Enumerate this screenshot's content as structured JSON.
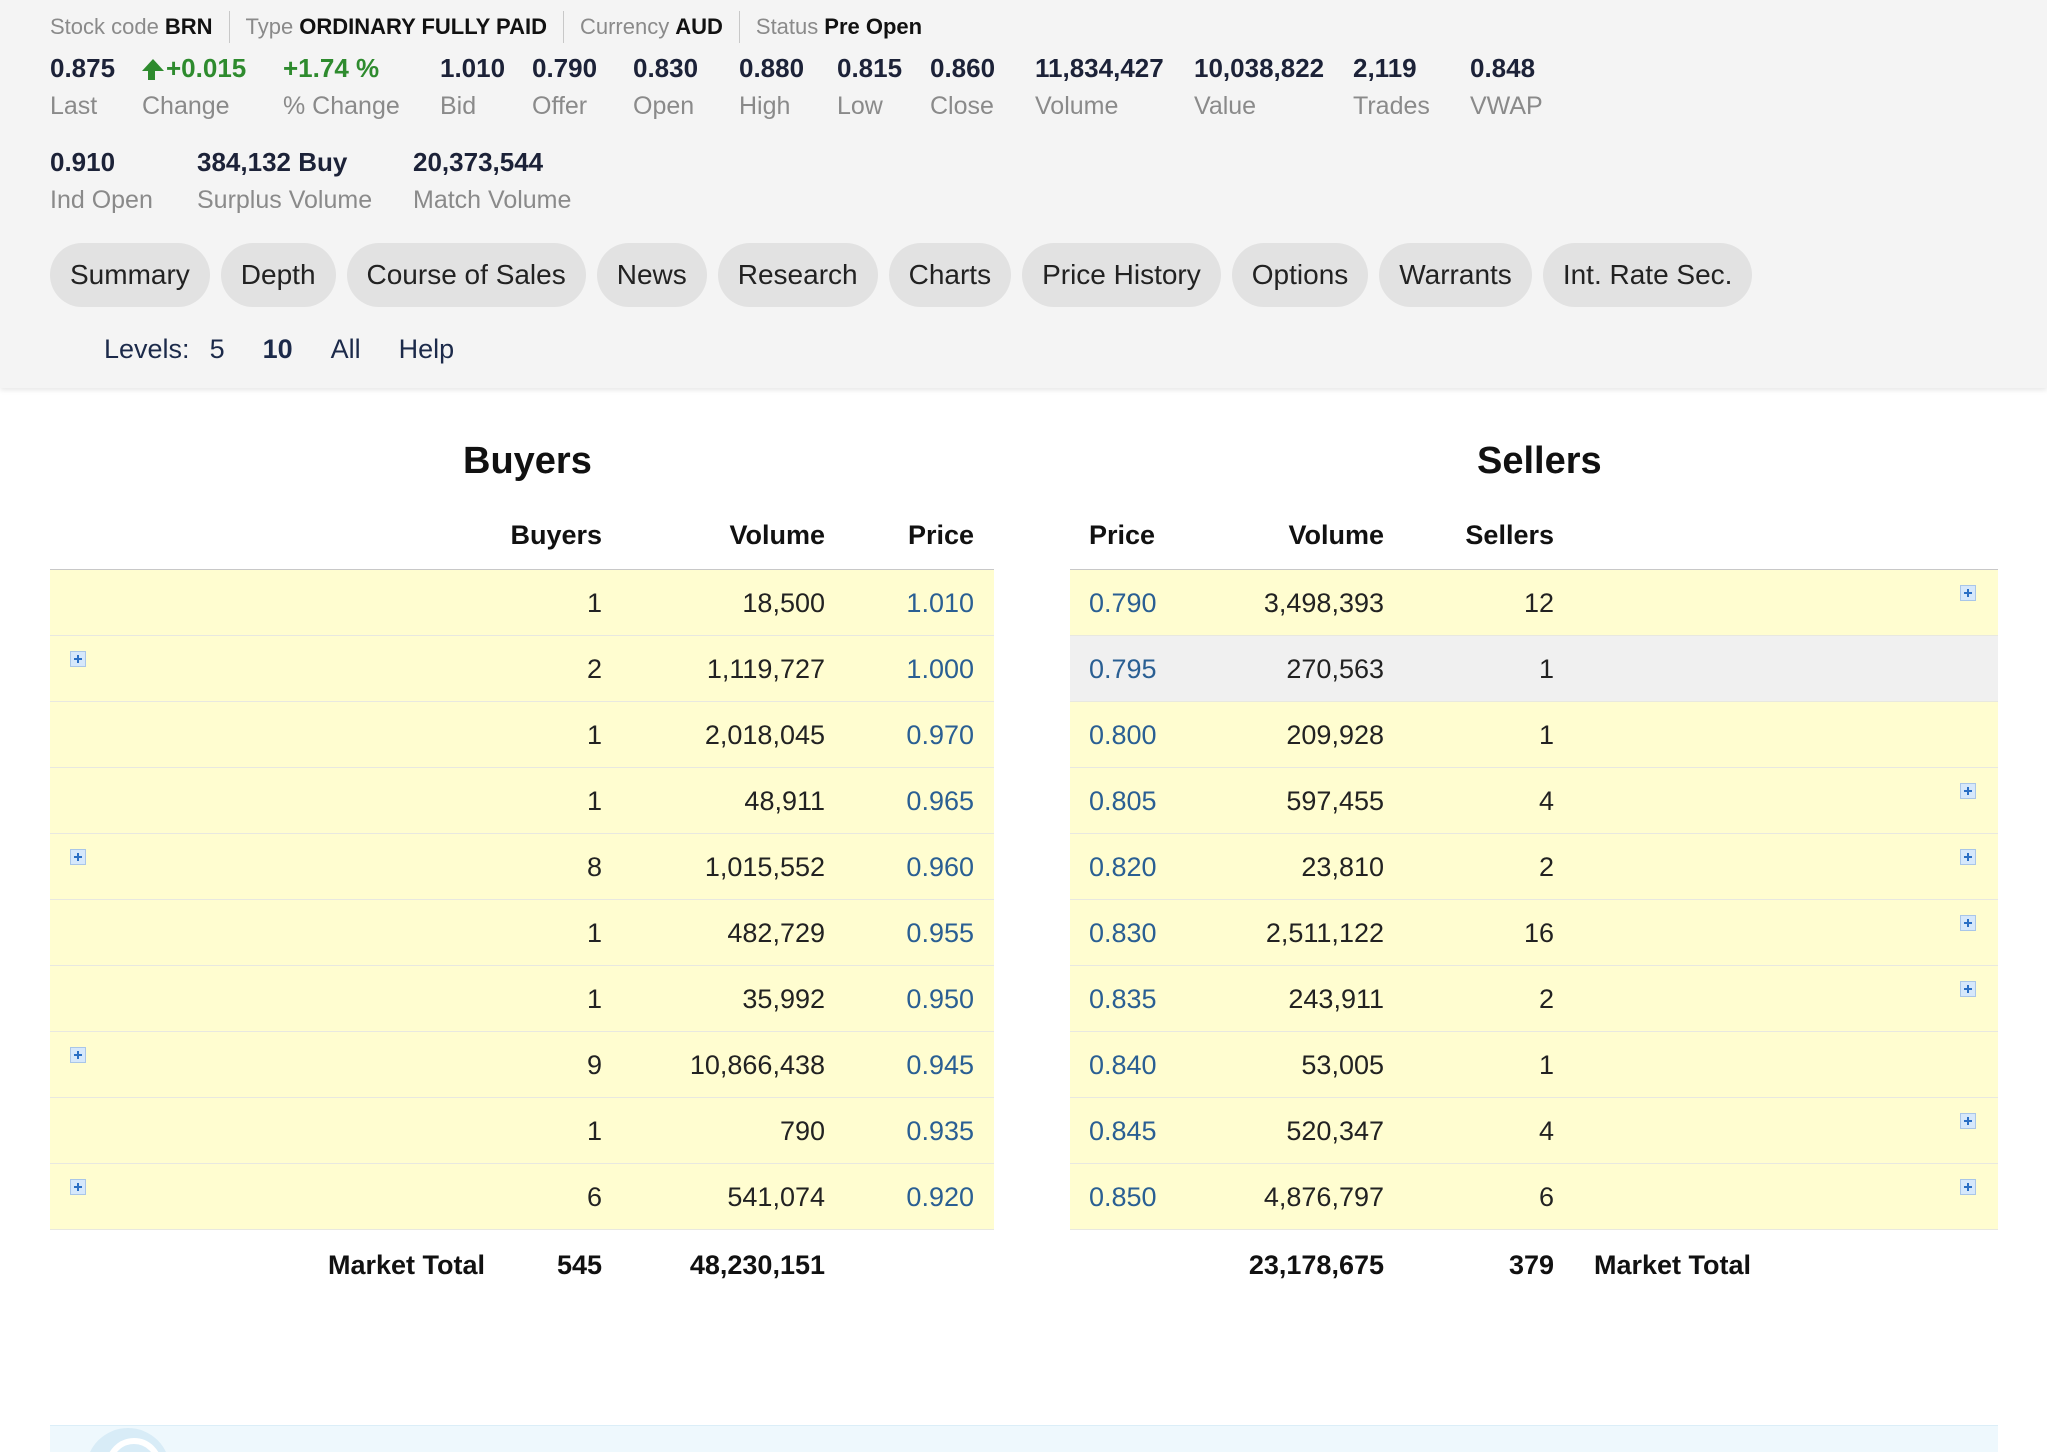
{
  "meta": [
    {
      "label": "Stock code",
      "value": "BRN"
    },
    {
      "label": "Type",
      "value": "ORDINARY FULLY PAID"
    },
    {
      "label": "Currency",
      "value": "AUD"
    },
    {
      "label": "Status",
      "value": "Pre Open"
    }
  ],
  "stats": {
    "last": {
      "value": "0.875",
      "label": "Last"
    },
    "change": {
      "value": "+0.015",
      "label": "Change"
    },
    "pct_change": {
      "value": "+1.74 %",
      "label": "% Change"
    },
    "bid": {
      "value": "1.010",
      "label": "Bid"
    },
    "offer": {
      "value": "0.790",
      "label": "Offer"
    },
    "open": {
      "value": "0.830",
      "label": "Open"
    },
    "high": {
      "value": "0.880",
      "label": "High"
    },
    "low": {
      "value": "0.815",
      "label": "Low"
    },
    "close": {
      "value": "0.860",
      "label": "Close"
    },
    "volume": {
      "value": "11,834,427",
      "label": "Volume"
    },
    "value": {
      "value": "10,038,822",
      "label": "Value"
    },
    "trades": {
      "value": "2,119",
      "label": "Trades"
    },
    "vwap": {
      "value": "0.848",
      "label": "VWAP"
    },
    "ind_open": {
      "value": "0.910",
      "label": "Ind Open"
    },
    "surplus_volume": {
      "value": "384,132 Buy",
      "label": "Surplus Volume"
    },
    "match_volume": {
      "value": "20,373,544",
      "label": "Match Volume"
    }
  },
  "colors": {
    "up": "#2e8b2e",
    "price_link": "#2a5f93",
    "row_highlight": "#fffdd0"
  },
  "icons": {
    "change": "arrow-up-icon",
    "expand": "plus-icon"
  },
  "tabs": [
    "Summary",
    "Depth",
    "Course of Sales",
    "News",
    "Research",
    "Charts",
    "Price History",
    "Options",
    "Warrants",
    "Int. Rate Sec."
  ],
  "levels": {
    "label": "Levels:",
    "options": [
      "5",
      "10",
      "All",
      "Help"
    ],
    "active": "10"
  },
  "buyers": {
    "title": "Buyers",
    "headers": {
      "count": "Buyers",
      "volume": "Volume",
      "price": "Price"
    },
    "rows": [
      {
        "count": "1",
        "volume": "18,500",
        "price": "1.010",
        "expand": false
      },
      {
        "count": "2",
        "volume": "1,119,727",
        "price": "1.000",
        "expand": true
      },
      {
        "count": "1",
        "volume": "2,018,045",
        "price": "0.970",
        "expand": false
      },
      {
        "count": "1",
        "volume": "48,911",
        "price": "0.965",
        "expand": false
      },
      {
        "count": "8",
        "volume": "1,015,552",
        "price": "0.960",
        "expand": true
      },
      {
        "count": "1",
        "volume": "482,729",
        "price": "0.955",
        "expand": false
      },
      {
        "count": "1",
        "volume": "35,992",
        "price": "0.950",
        "expand": false
      },
      {
        "count": "9",
        "volume": "10,866,438",
        "price": "0.945",
        "expand": true
      },
      {
        "count": "1",
        "volume": "790",
        "price": "0.935",
        "expand": false
      },
      {
        "count": "6",
        "volume": "541,074",
        "price": "0.920",
        "expand": true
      }
    ],
    "total": {
      "label": "Market Total",
      "count": "545",
      "volume": "48,230,151"
    }
  },
  "sellers": {
    "title": "Sellers",
    "headers": {
      "price": "Price",
      "volume": "Volume",
      "count": "Sellers"
    },
    "rows": [
      {
        "price": "0.790",
        "volume": "3,498,393",
        "count": "12",
        "expand": true,
        "highlight": true
      },
      {
        "price": "0.795",
        "volume": "270,563",
        "count": "1",
        "expand": false,
        "highlight": false
      },
      {
        "price": "0.800",
        "volume": "209,928",
        "count": "1",
        "expand": false,
        "highlight": true
      },
      {
        "price": "0.805",
        "volume": "597,455",
        "count": "4",
        "expand": true,
        "highlight": true
      },
      {
        "price": "0.820",
        "volume": "23,810",
        "count": "2",
        "expand": true,
        "highlight": true
      },
      {
        "price": "0.830",
        "volume": "2,511,122",
        "count": "16",
        "expand": true,
        "highlight": true
      },
      {
        "price": "0.835",
        "volume": "243,911",
        "count": "2",
        "expand": true,
        "highlight": true
      },
      {
        "price": "0.840",
        "volume": "53,005",
        "count": "1",
        "expand": false,
        "highlight": true
      },
      {
        "price": "0.845",
        "volume": "520,347",
        "count": "4",
        "expand": true,
        "highlight": true
      },
      {
        "price": "0.850",
        "volume": "4,876,797",
        "count": "6",
        "expand": true,
        "highlight": true
      }
    ],
    "total": {
      "label": "Market Total",
      "count": "379",
      "volume": "23,178,675"
    }
  }
}
